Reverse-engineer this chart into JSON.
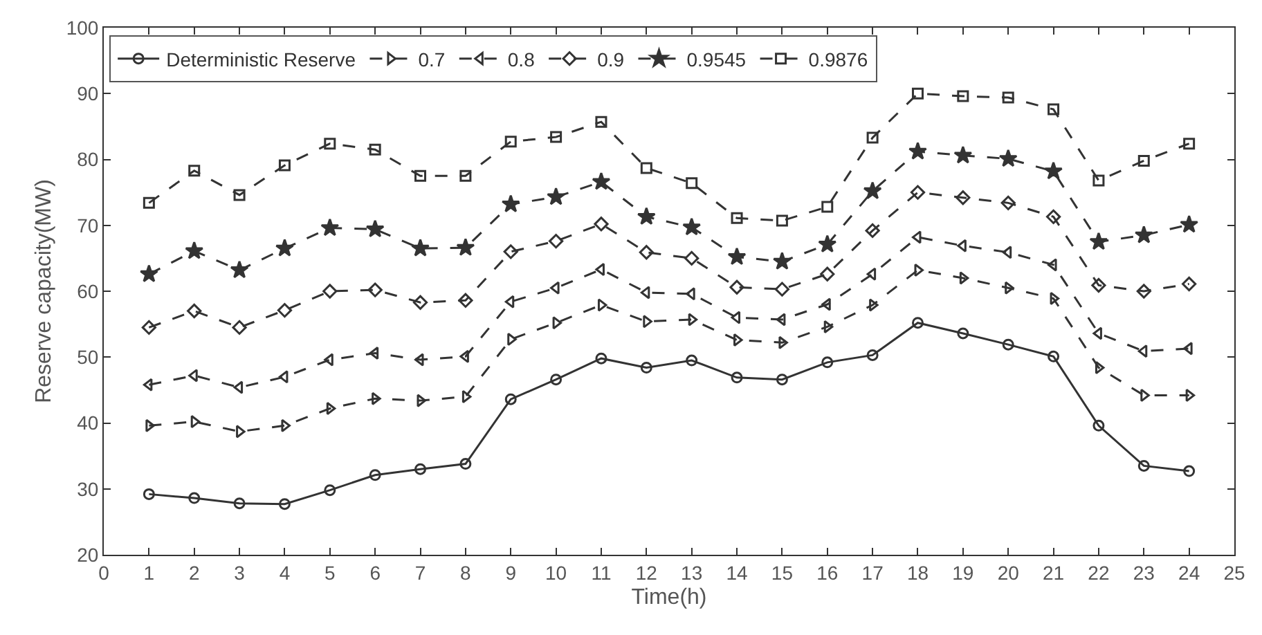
{
  "chart_data": {
    "type": "line",
    "xlabel": "Time(h)",
    "ylabel": "Reserve capacity(MW)",
    "x": [
      1,
      2,
      3,
      4,
      5,
      6,
      7,
      8,
      9,
      10,
      11,
      12,
      13,
      14,
      15,
      16,
      17,
      18,
      19,
      20,
      21,
      22,
      23,
      24
    ],
    "xlim": [
      0,
      25
    ],
    "xticks": [
      0,
      1,
      2,
      3,
      4,
      5,
      6,
      7,
      8,
      9,
      10,
      11,
      12,
      13,
      14,
      15,
      16,
      17,
      18,
      19,
      20,
      21,
      22,
      23,
      24,
      25
    ],
    "ylim": [
      20,
      100
    ],
    "yticks": [
      20,
      30,
      40,
      50,
      60,
      70,
      80,
      90,
      100
    ],
    "legend": "top left",
    "series": [
      {
        "name": "Deterministic Reserve",
        "color": "#333333",
        "marker": "circle",
        "line_style": "solid",
        "values": [
          29.2,
          28.6,
          27.8,
          27.7,
          29.8,
          32.1,
          33,
          33.8,
          43.6,
          46.6,
          49.8,
          48.4,
          49.5,
          46.9,
          46.6,
          49.2,
          50.3,
          55.2,
          53.6,
          51.9,
          50.1,
          39.6,
          33.5,
          32.7
        ]
      },
      {
        "name": "0.7",
        "color": "#333333",
        "marker": "triangle-right",
        "line_style": "dashed",
        "values": [
          39.6,
          40.2,
          38.7,
          39.6,
          42.2,
          43.7,
          43.4,
          44,
          52.7,
          55.2,
          57.9,
          55.4,
          55.7,
          52.6,
          52.2,
          54.6,
          57.9,
          63.2,
          62,
          60.5,
          58.9,
          48.4,
          44.2,
          44.2
        ]
      },
      {
        "name": "0.8",
        "color": "#333333",
        "marker": "triangle-left",
        "line_style": "dashed",
        "values": [
          45.8,
          47.2,
          45.4,
          47,
          49.6,
          50.6,
          49.6,
          50.1,
          58.4,
          60.5,
          63.3,
          59.8,
          59.6,
          56,
          55.7,
          58,
          62.6,
          68.2,
          66.9,
          65.9,
          64,
          53.6,
          50.9,
          51.3
        ]
      },
      {
        "name": "0.9",
        "color": "#333333",
        "marker": "diamond",
        "line_style": "dashed",
        "values": [
          54.5,
          57,
          54.5,
          57.1,
          60,
          60.2,
          58.3,
          58.6,
          66,
          67.6,
          70.2,
          65.9,
          65,
          60.6,
          60.3,
          62.6,
          69.2,
          75,
          74.2,
          73.4,
          71.3,
          60.9,
          60,
          61.1
        ]
      },
      {
        "name": "0.9545",
        "color": "#333333",
        "marker": "star",
        "line_style": "dashed",
        "values": [
          62.6,
          66.1,
          63.2,
          66.5,
          69.6,
          69.4,
          66.5,
          66.6,
          73.2,
          74.3,
          76.6,
          71.3,
          69.7,
          65.2,
          64.5,
          67.1,
          75.2,
          81.2,
          80.6,
          80.1,
          78.2,
          67.5,
          68.5,
          70.1
        ]
      },
      {
        "name": "0.9876",
        "color": "#333333",
        "marker": "square",
        "line_style": "dashed",
        "values": [
          73.4,
          78.3,
          74.6,
          79.1,
          82.4,
          81.5,
          77.5,
          77.5,
          82.7,
          83.4,
          85.7,
          78.7,
          76.4,
          71.1,
          70.7,
          72.8,
          83.3,
          90,
          89.6,
          89.4,
          87.6,
          76.8,
          79.8,
          82.4
        ]
      }
    ]
  }
}
